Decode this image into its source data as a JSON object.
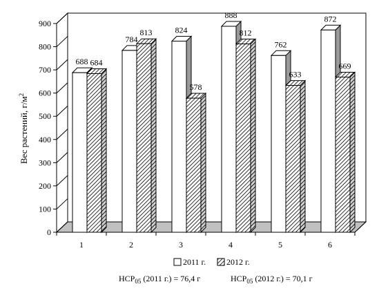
{
  "chart_data": {
    "type": "bar",
    "categories": [
      "1",
      "2",
      "3",
      "4",
      "5",
      "6"
    ],
    "series": [
      {
        "name": "2011 г.",
        "values": [
          688,
          784,
          824,
          888,
          762,
          872
        ],
        "color": "#ffffff",
        "pattern": "none"
      },
      {
        "name": "2012 г.",
        "values": [
          684,
          813,
          578,
          812,
          633,
          669
        ],
        "color": "#ffffff",
        "pattern": "diagonal-hatch"
      }
    ],
    "ylabel": "Вес растений, г/м",
    "ylabel_superscript": "2",
    "ylim": [
      0,
      900
    ],
    "yticks": [
      0,
      100,
      200,
      300,
      400,
      500,
      600,
      700,
      800,
      900
    ],
    "grid": false,
    "legend_placement": "bottom",
    "style": "3d-columns"
  },
  "notes": {
    "hcp_2011_prefix": "НСР",
    "hcp_2011_sub": "05",
    "hcp_2011_rest": " (2011 г.) = 76,4 г",
    "hcp_2012_prefix": "НСР",
    "hcp_2012_sub": "05",
    "hcp_2012_rest": " (2012 г.) = 70,1 г"
  }
}
